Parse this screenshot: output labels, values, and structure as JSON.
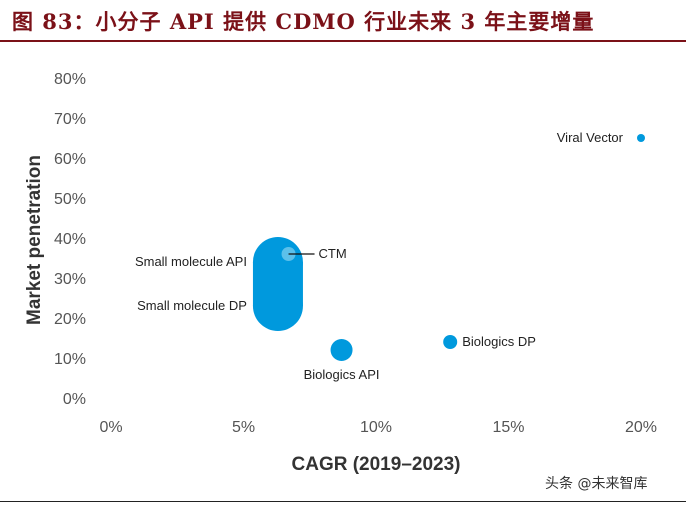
{
  "figure": {
    "title": "图 83：小分子 API 提供 CDMO 行业未来 3 年主要增量",
    "watermark": "头条 @未来智库"
  },
  "colors": {
    "title": "#7b1118",
    "bubble": "#0099dd",
    "bubble_light": "#5cc0ea"
  },
  "chart_data": {
    "type": "scatter",
    "xlabel": "CAGR (2019–2023)",
    "ylabel": "Market penetration",
    "xlim": [
      0,
      20
    ],
    "ylim": [
      0,
      80
    ],
    "xticks": [
      "0%",
      "5%",
      "10%",
      "15%",
      "20%"
    ],
    "yticks": [
      "0%",
      "10%",
      "20%",
      "30%",
      "40%",
      "50%",
      "60%",
      "70%",
      "80%"
    ],
    "grid": false,
    "points": [
      {
        "label": "Small molecule API",
        "x": 6.3,
        "y": 34,
        "size": "large",
        "label_side": "left"
      },
      {
        "label": "Small molecule DP",
        "x": 6.3,
        "y": 23,
        "size": "large",
        "label_side": "left"
      },
      {
        "label": "CTM",
        "x": 6.7,
        "y": 36,
        "size": "small",
        "shade": "light",
        "label_side": "right"
      },
      {
        "label": "Biologics API",
        "x": 8.7,
        "y": 12,
        "size": "medium",
        "label_side": "below"
      },
      {
        "label": "Biologics DP",
        "x": 12.8,
        "y": 14,
        "size": "small",
        "label_side": "right"
      },
      {
        "label": "Viral Vector",
        "x": 20,
        "y": 65,
        "size": "tiny",
        "label_side": "left"
      }
    ]
  }
}
